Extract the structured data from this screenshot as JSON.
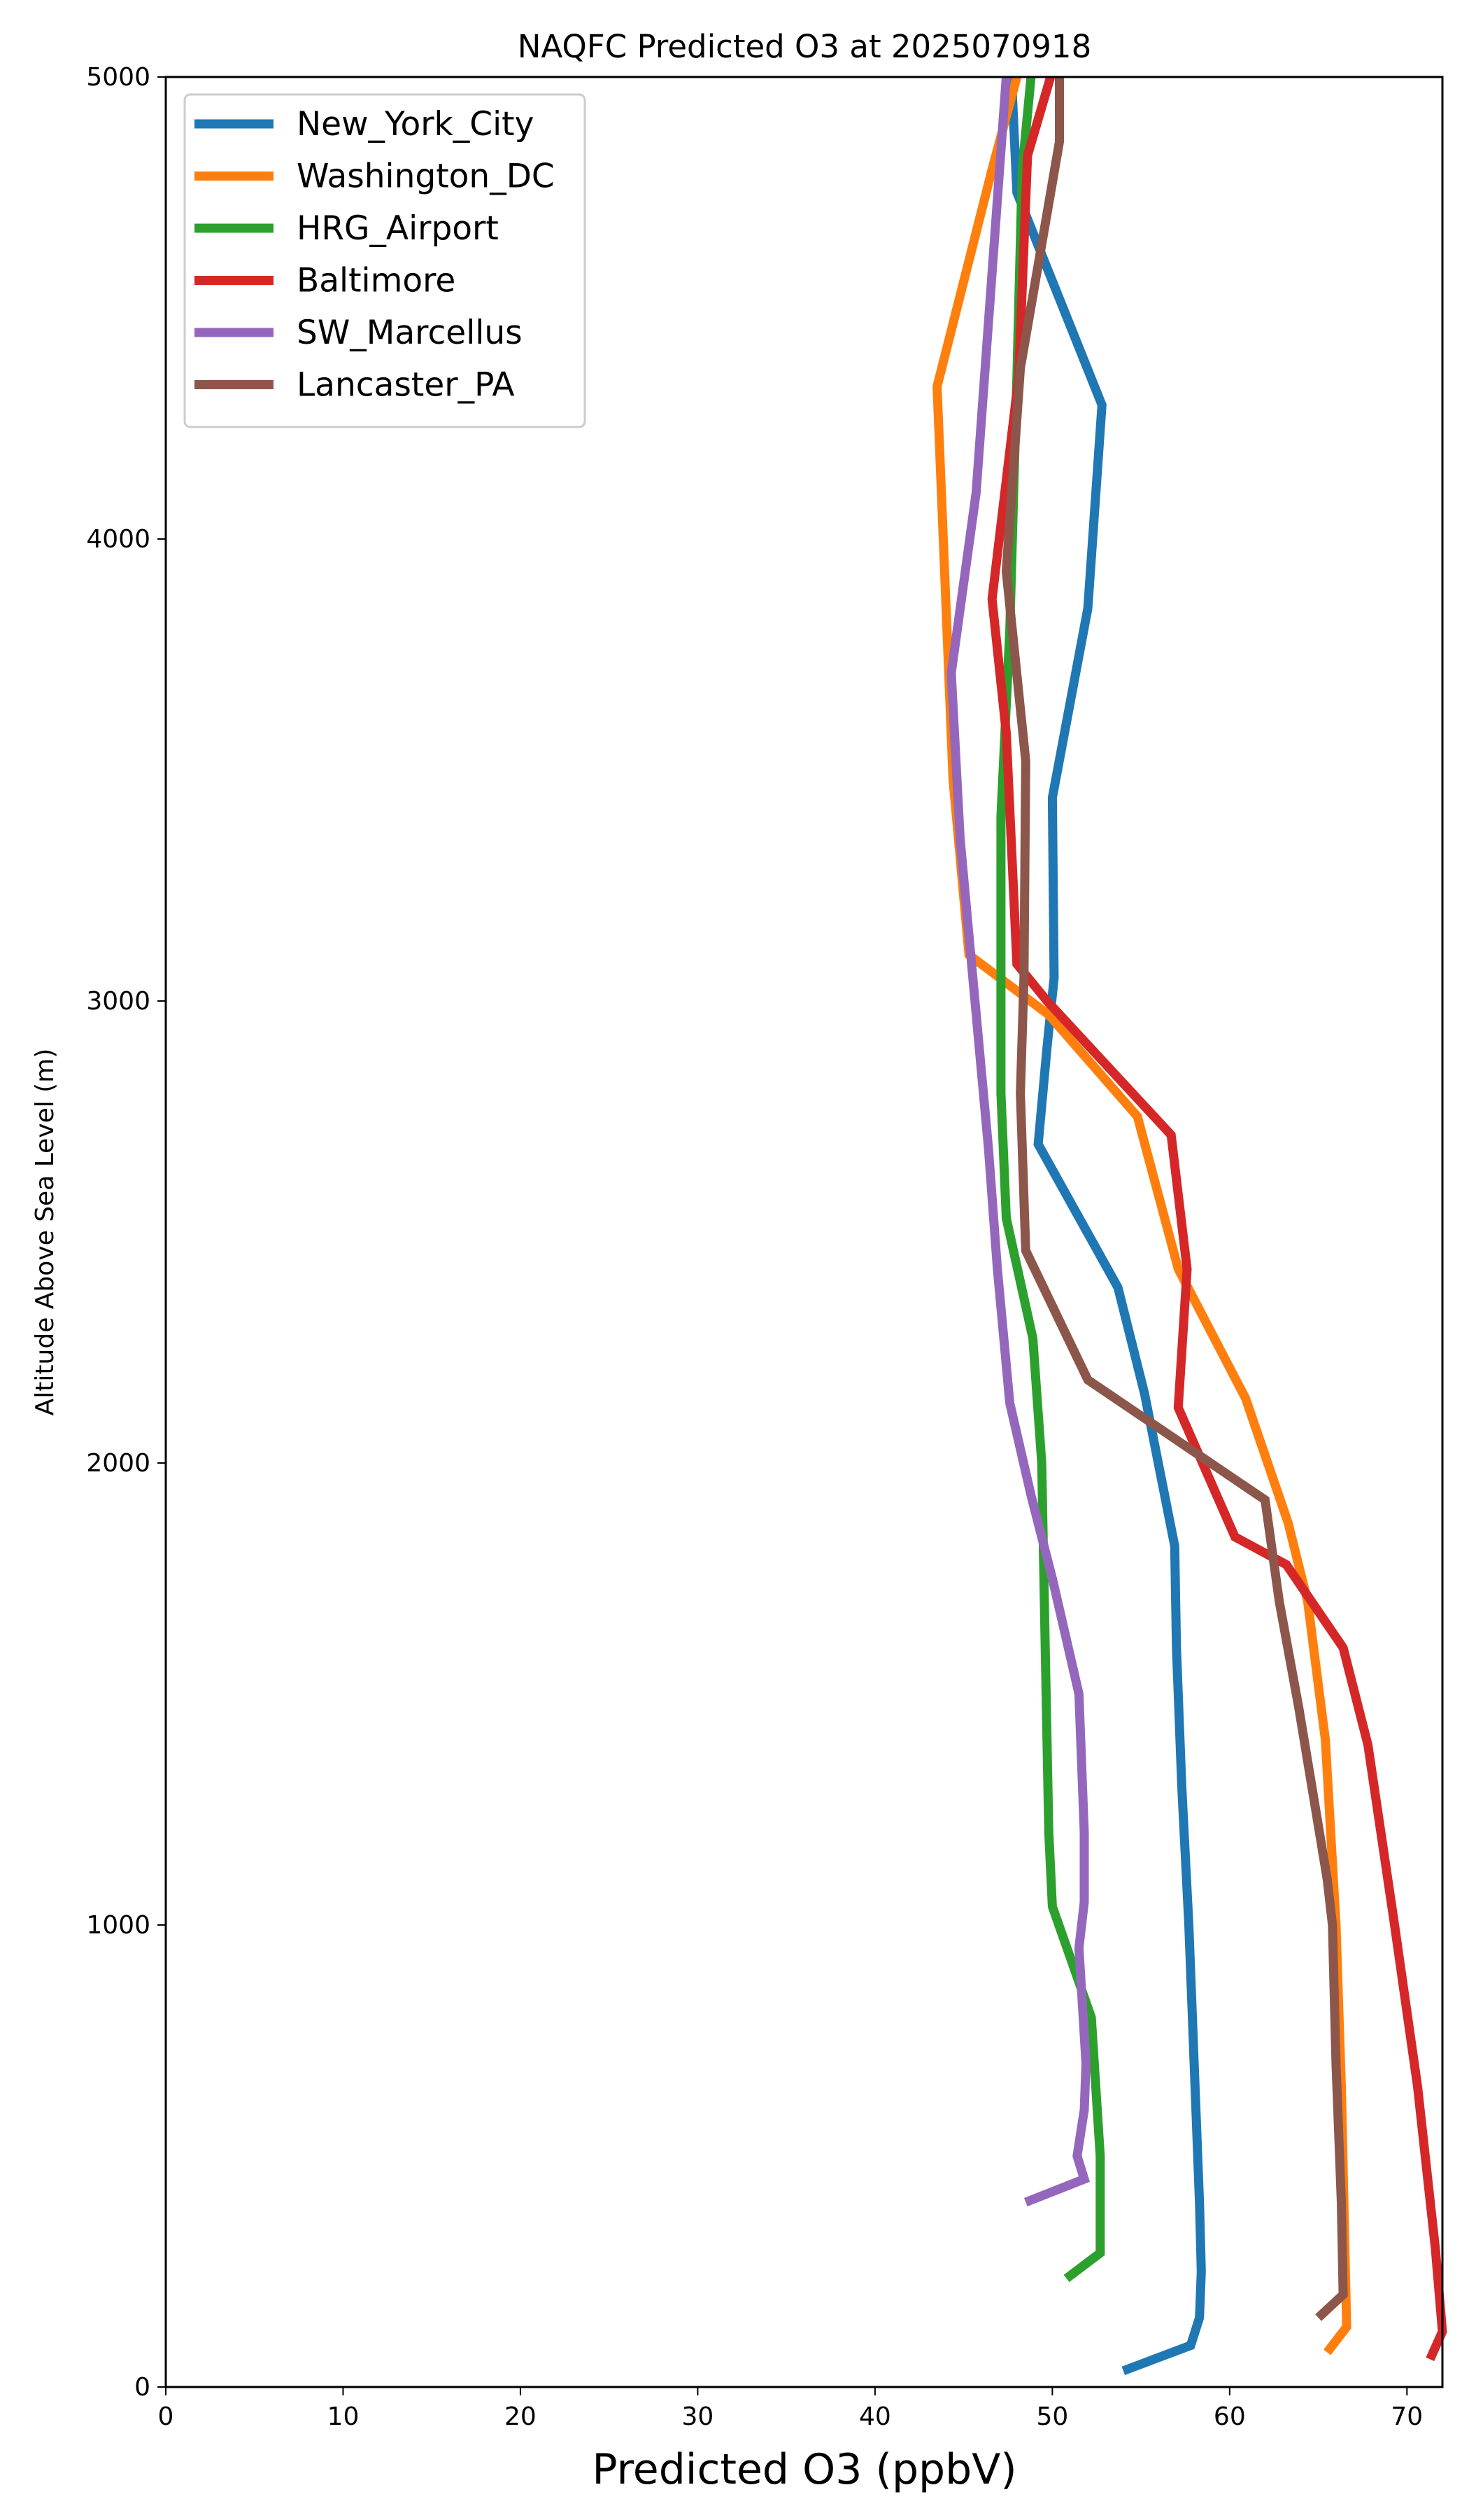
{
  "chart_data": {
    "type": "line",
    "title": "NAQFC Predicted O3 at 2025070918",
    "xlabel": "Predicted O3 (ppbV)",
    "ylabel": "Altitude Above Sea Level (m)",
    "xlim": [
      0,
      72
    ],
    "ylim": [
      0,
      5000
    ],
    "x_ticks": [
      0,
      10,
      20,
      30,
      40,
      50,
      60,
      70
    ],
    "y_ticks": [
      0,
      1000,
      2000,
      3000,
      4000,
      5000
    ],
    "grid": false,
    "legend_position": "top-left",
    "series": [
      {
        "name": "New_York_City",
        "color": "#1f77b4",
        "points": [
          [
            54.0,
            35
          ],
          [
            57.8,
            90
          ],
          [
            58.3,
            150
          ],
          [
            58.4,
            250
          ],
          [
            58.3,
            400
          ],
          [
            58.0,
            700
          ],
          [
            57.7,
            1000
          ],
          [
            57.3,
            1300
          ],
          [
            57.0,
            1600
          ],
          [
            56.9,
            1820
          ],
          [
            55.2,
            2150
          ],
          [
            53.7,
            2380
          ],
          [
            49.2,
            2690
          ],
          [
            49.7,
            2900
          ],
          [
            50.1,
            3050
          ],
          [
            50.0,
            3440
          ],
          [
            52.0,
            3850
          ],
          [
            52.8,
            4290
          ],
          [
            48.0,
            4750
          ],
          [
            47.7,
            5000
          ]
        ]
      },
      {
        "name": "Washington_DC",
        "color": "#ff7f0e",
        "points": [
          [
            65.5,
            75
          ],
          [
            66.6,
            130
          ],
          [
            66.5,
            300
          ],
          [
            66.3,
            650
          ],
          [
            66.0,
            1000
          ],
          [
            65.4,
            1400
          ],
          [
            64.4,
            1700
          ],
          [
            63.3,
            1870
          ],
          [
            60.9,
            2140
          ],
          [
            57.1,
            2420
          ],
          [
            54.8,
            2750
          ],
          [
            49.8,
            2970
          ],
          [
            45.3,
            3100
          ],
          [
            44.4,
            3480
          ],
          [
            43.5,
            4330
          ],
          [
            46.6,
            4800
          ],
          [
            48.0,
            5000
          ]
        ]
      },
      {
        "name": "HRG_Airport",
        "color": "#2ca02c",
        "points": [
          [
            50.8,
            235
          ],
          [
            52.7,
            290
          ],
          [
            52.7,
            500
          ],
          [
            52.2,
            800
          ],
          [
            50.0,
            1040
          ],
          [
            49.8,
            1200
          ],
          [
            49.6,
            1600
          ],
          [
            49.4,
            2000
          ],
          [
            48.9,
            2270
          ],
          [
            47.4,
            2530
          ],
          [
            47.1,
            2800
          ],
          [
            47.1,
            3400
          ],
          [
            47.6,
            3800
          ],
          [
            48.0,
            4350
          ],
          [
            48.3,
            4800
          ],
          [
            48.8,
            5000
          ]
        ]
      },
      {
        "name": "Baltimore",
        "color": "#d62728",
        "points": [
          [
            71.3,
            60
          ],
          [
            72.0,
            120
          ],
          [
            71.6,
            300
          ],
          [
            70.6,
            650
          ],
          [
            69.3,
            1000
          ],
          [
            67.8,
            1390
          ],
          [
            66.4,
            1600
          ],
          [
            63.2,
            1780
          ],
          [
            60.3,
            1840
          ],
          [
            57.1,
            2120
          ],
          [
            57.6,
            2420
          ],
          [
            56.7,
            2710
          ],
          [
            49.7,
            3000
          ],
          [
            48.0,
            3080
          ],
          [
            47.4,
            3580
          ],
          [
            46.6,
            3870
          ],
          [
            48.1,
            4350
          ],
          [
            48.6,
            4830
          ],
          [
            49.9,
            5000
          ]
        ]
      },
      {
        "name": "SW_Marcellus",
        "color": "#9467bd",
        "points": [
          [
            48.5,
            400
          ],
          [
            51.8,
            450
          ],
          [
            51.4,
            500
          ],
          [
            51.8,
            600
          ],
          [
            51.9,
            700
          ],
          [
            51.5,
            950
          ],
          [
            51.8,
            1050
          ],
          [
            51.8,
            1200
          ],
          [
            51.5,
            1500
          ],
          [
            50.0,
            1750
          ],
          [
            48.8,
            1930
          ],
          [
            47.6,
            2130
          ],
          [
            46.9,
            2420
          ],
          [
            46.4,
            2680
          ],
          [
            44.8,
            3350
          ],
          [
            44.3,
            3710
          ],
          [
            45.7,
            4100
          ],
          [
            47.4,
            5000
          ]
        ]
      },
      {
        "name": "Lancaster_PA",
        "color": "#8c564b",
        "points": [
          [
            65.0,
            150
          ],
          [
            66.4,
            200
          ],
          [
            66.3,
            400
          ],
          [
            66.0,
            700
          ],
          [
            65.8,
            1000
          ],
          [
            65.5,
            1100
          ],
          [
            63.9,
            1470
          ],
          [
            62.8,
            1700
          ],
          [
            62.0,
            1920
          ],
          [
            52.0,
            2180
          ],
          [
            48.5,
            2460
          ],
          [
            48.2,
            2800
          ],
          [
            48.4,
            3050
          ],
          [
            48.5,
            3520
          ],
          [
            47.4,
            3930
          ],
          [
            48.2,
            4370
          ],
          [
            50.4,
            4860
          ],
          [
            50.4,
            5000
          ]
        ]
      }
    ]
  }
}
